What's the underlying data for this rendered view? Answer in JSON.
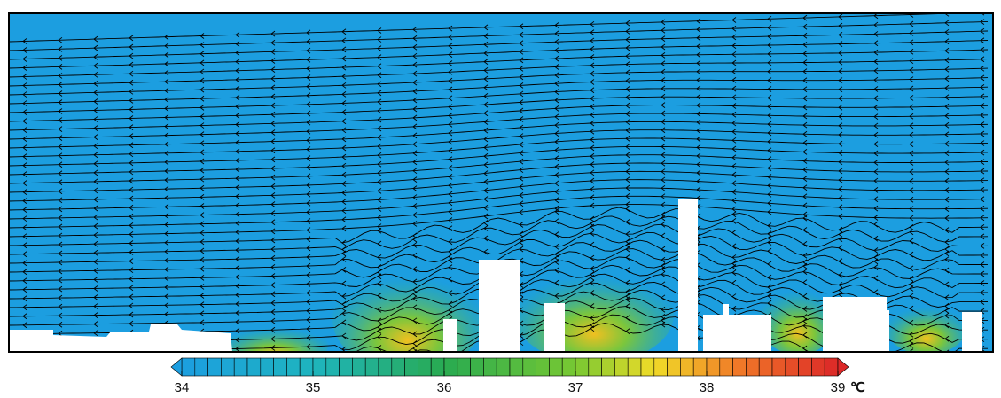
{
  "colorbar": {
    "lim": [
      34,
      39
    ],
    "ticks": [
      34,
      35,
      36,
      37,
      38,
      39
    ],
    "unit": "℃"
  }
}
